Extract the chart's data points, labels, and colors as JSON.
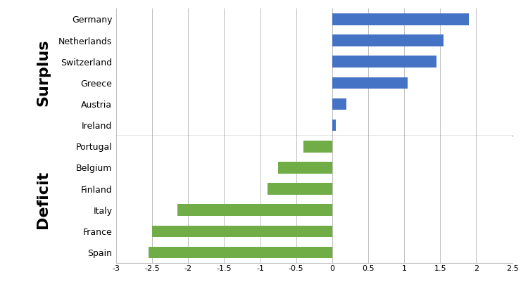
{
  "surplus_countries": [
    "Germany",
    "Netherlands",
    "Switzerland",
    "Greece",
    "Austria",
    "Ireland"
  ],
  "surplus_values": [
    1.9,
    1.55,
    1.45,
    1.05,
    0.2,
    0.05
  ],
  "deficit_countries": [
    "Portugal",
    "Belgium",
    "Finland",
    "Italy",
    "France",
    "Spain"
  ],
  "deficit_values": [
    -0.4,
    -0.75,
    -0.9,
    -2.15,
    -2.5,
    -2.55
  ],
  "bar_color_surplus": "#4472C4",
  "bar_color_deficit": "#70AD47",
  "surplus_label": "Surplus",
  "deficit_label": "Deficit",
  "xlim": [
    -3,
    2.5
  ],
  "xticks": [
    -3,
    -2.5,
    -2,
    -1.5,
    -1,
    -0.5,
    0,
    0.5,
    1,
    1.5,
    2,
    2.5
  ],
  "xtick_labels": [
    "-3",
    "-2.5",
    "-2",
    "-1.5",
    "-1",
    "-0.5",
    "0",
    "0.5",
    "1",
    "1.5",
    "2",
    "2.5"
  ],
  "background_color": "#FFFFFF",
  "grid_color": "#C0C0C0",
  "divider_color": "#808080",
  "bar_height": 0.55,
  "tick_fontsize": 8,
  "label_fontsize": 9,
  "section_label_fontsize": 16
}
